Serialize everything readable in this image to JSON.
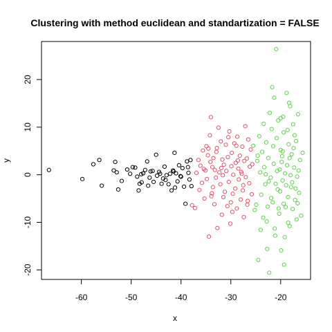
{
  "chart_data": {
    "type": "scatter",
    "title": "Clustering with method euclidean and standartization = FALSE",
    "xlabel": "x",
    "ylabel": "y",
    "xlim": [
      -68,
      -14
    ],
    "ylim": [
      -22,
      28
    ],
    "x_ticks": [
      -60,
      -50,
      -40,
      -30,
      -20
    ],
    "y_ticks": [
      -20,
      -10,
      0,
      10,
      20
    ],
    "x_tick_labels": [
      "-60",
      "-50",
      "-40",
      "-30",
      "-20"
    ],
    "y_tick_labels": [
      "-20",
      "-10",
      "0",
      "10",
      "20"
    ],
    "grid": false,
    "legend": "none",
    "marker": "open-circle",
    "series": [
      {
        "color": "#000000",
        "points": [
          [
            -66.5,
            1.0
          ],
          [
            -59.8,
            -0.9
          ],
          [
            -57.6,
            2.2
          ],
          [
            -56.4,
            3.1
          ],
          [
            -55.9,
            -2.3
          ],
          [
            -53.2,
            2.7
          ],
          [
            -52.9,
            0.5
          ],
          [
            -52.6,
            -3.1
          ],
          [
            -51.9,
            -1.3
          ],
          [
            -50.8,
            1.1
          ],
          [
            -50.2,
            0.2
          ],
          [
            -49.7,
            1.6
          ],
          [
            -49.2,
            1.5
          ],
          [
            -48.8,
            -0.4
          ],
          [
            -48.5,
            -3.3
          ],
          [
            -48.3,
            -1.9
          ],
          [
            -47.9,
            -1.6
          ],
          [
            -47.6,
            0.3
          ],
          [
            -47.2,
            1.0
          ],
          [
            -46.8,
            2.8
          ],
          [
            -46.6,
            -2.3
          ],
          [
            -46.1,
            0.7
          ],
          [
            -45.7,
            0.8
          ],
          [
            -45.5,
            -1.5
          ],
          [
            -45.0,
            4.2
          ],
          [
            -44.8,
            -0.2
          ],
          [
            -44.4,
            0.6
          ],
          [
            -43.9,
            -1.9
          ],
          [
            -43.6,
            -0.8
          ],
          [
            -43.3,
            1.7
          ],
          [
            -42.9,
            -0.1
          ],
          [
            -42.5,
            -2.0
          ],
          [
            -42.2,
            0.2
          ],
          [
            -41.9,
            -3.3
          ],
          [
            -41.6,
            0.9
          ],
          [
            -41.3,
            4.6
          ],
          [
            -41.0,
            0.3
          ],
          [
            -40.7,
            -1.4
          ],
          [
            -40.4,
            2.0
          ],
          [
            -40.1,
            -0.3
          ],
          [
            -39.7,
            1.4
          ],
          [
            -39.4,
            -2.5
          ],
          [
            -39.1,
            -6.1
          ],
          [
            -38.8,
            2.8
          ],
          [
            -38.5,
            0.4
          ],
          [
            -38.3,
            -1.0
          ],
          [
            -38.1,
            3.1
          ],
          [
            -37.9,
            -2.4
          ],
          [
            -41.5,
            0.7
          ],
          [
            -43.1,
            -1.1
          ],
          [
            -44.2,
            0.2
          ],
          [
            -46.3,
            -0.6
          ],
          [
            -48.0,
            0.1
          ],
          [
            -53.5,
            0.9
          ],
          [
            -38.6,
            1.6
          ],
          [
            -41.2,
            -2.7
          ],
          [
            -40.0,
            -0.4
          ]
        ]
      },
      {
        "color": "#DF536B",
        "points": [
          [
            -37.8,
            -6.4
          ],
          [
            -37.2,
            -7.0
          ],
          [
            -36.9,
            0.4
          ],
          [
            -36.5,
            3.1
          ],
          [
            -36.3,
            -3.2
          ],
          [
            -35.8,
            -1.7
          ],
          [
            -35.6,
            5.1
          ],
          [
            -35.4,
            1.2
          ],
          [
            -35.1,
            0.9
          ],
          [
            -34.9,
            6.0
          ],
          [
            -34.8,
            -0.9
          ],
          [
            -34.6,
            4.1
          ],
          [
            -34.5,
            5.5
          ],
          [
            -34.4,
            -13.0
          ],
          [
            -34.2,
            8.3
          ],
          [
            -34.0,
            12.1
          ],
          [
            -33.9,
            -4.5
          ],
          [
            -33.7,
            1.6
          ],
          [
            -33.6,
            -2.6
          ],
          [
            -33.5,
            3.5
          ],
          [
            -33.3,
            -6.2
          ],
          [
            -33.2,
            1.0
          ],
          [
            -33.0,
            -0.6
          ],
          [
            -32.9,
            4.8
          ],
          [
            -32.7,
            -11.2
          ],
          [
            -32.5,
            9.9
          ],
          [
            -32.3,
            0.5
          ],
          [
            -32.1,
            -2.0
          ],
          [
            -32.0,
            7.0
          ],
          [
            -31.8,
            -8.4
          ],
          [
            -31.7,
            3.2
          ],
          [
            -31.6,
            -0.1
          ],
          [
            -31.4,
            2.1
          ],
          [
            -31.2,
            -3.6
          ],
          [
            -31.0,
            6.3
          ],
          [
            -30.9,
            0.8
          ],
          [
            -30.7,
            -6.6
          ],
          [
            -30.6,
            3.7
          ],
          [
            -30.4,
            -1.5
          ],
          [
            -30.3,
            9.1
          ],
          [
            -30.1,
            -10.3
          ],
          [
            -29.9,
            1.8
          ],
          [
            -29.8,
            4.6
          ],
          [
            -29.6,
            -4.0
          ],
          [
            -29.5,
            0.0
          ],
          [
            -29.3,
            6.6
          ],
          [
            -29.1,
            -2.9
          ],
          [
            -29.0,
            2.5
          ],
          [
            -28.8,
            -7.1
          ],
          [
            -28.7,
            8.0
          ],
          [
            -28.5,
            1.3
          ],
          [
            -28.4,
            -1.0
          ],
          [
            -28.2,
            4.0
          ],
          [
            -28.0,
            -5.2
          ],
          [
            -27.9,
            0.6
          ],
          [
            -27.7,
            5.9
          ],
          [
            -27.6,
            -3.3
          ],
          [
            -27.4,
            -8.9
          ],
          [
            -27.3,
            2.9
          ],
          [
            -27.1,
            10.2
          ],
          [
            -27.0,
            -0.5
          ],
          [
            -26.8,
            3.4
          ],
          [
            -26.7,
            -6.3
          ],
          [
            -26.5,
            7.4
          ],
          [
            -26.3,
            -1.8
          ],
          [
            -26.2,
            1.7
          ],
          [
            -26.0,
            5.3
          ],
          [
            -25.8,
            -4.1
          ],
          [
            -25.7,
            2.2
          ],
          [
            -36.1,
            1.9
          ],
          [
            -35.3,
            -5.0
          ],
          [
            -33.8,
            -3.9
          ],
          [
            -32.8,
            5.6
          ],
          [
            -31.5,
            -4.7
          ],
          [
            -30.5,
            7.9
          ],
          [
            -29.7,
            -7.8
          ],
          [
            -28.6,
            3.0
          ],
          [
            -27.5,
            -2.2
          ],
          [
            -26.6,
            -5.5
          ],
          [
            -34.1,
            2.7
          ],
          [
            -31.9,
            1.4
          ],
          [
            -30.0,
            -5.8
          ],
          [
            -28.9,
            6.1
          ],
          [
            -27.8,
            0.2
          ]
        ]
      },
      {
        "color": "#61D04F",
        "points": [
          [
            -25.5,
            6.1
          ],
          [
            -25.2,
            -7.4
          ],
          [
            -24.9,
            -6.3
          ],
          [
            -24.7,
            2.9
          ],
          [
            -24.5,
            -17.9
          ],
          [
            -24.3,
            8.1
          ],
          [
            -24.1,
            0.5
          ],
          [
            -23.9,
            -4.2
          ],
          [
            -23.7,
            4.8
          ],
          [
            -23.5,
            -9.0
          ],
          [
            -23.3,
            1.6
          ],
          [
            -23.1,
            -2.0
          ],
          [
            -22.9,
            6.8
          ],
          [
            -22.7,
            -15.6
          ],
          [
            -22.5,
            3.5
          ],
          [
            -22.3,
            -20.6
          ],
          [
            -22.2,
            13.0
          ],
          [
            -22.0,
            -0.6
          ],
          [
            -21.8,
            9.6
          ],
          [
            -21.6,
            -5.8
          ],
          [
            -21.4,
            2.3
          ],
          [
            -21.3,
            16.2
          ],
          [
            -21.1,
            -12.8
          ],
          [
            -20.9,
            26.4
          ],
          [
            -20.8,
            7.7
          ],
          [
            -20.6,
            -3.1
          ],
          [
            -20.5,
            11.4
          ],
          [
            -20.3,
            -8.2
          ],
          [
            -20.2,
            1.1
          ],
          [
            -20.0,
            5.2
          ],
          [
            -19.9,
            -15.9
          ],
          [
            -19.7,
            3.9
          ],
          [
            -19.6,
            -1.2
          ],
          [
            -19.4,
            8.9
          ],
          [
            -19.3,
            -18.9
          ],
          [
            -19.1,
            0.3
          ],
          [
            -19.0,
            -6.8
          ],
          [
            -18.8,
            17.2
          ],
          [
            -18.7,
            2.0
          ],
          [
            -18.5,
            -4.7
          ],
          [
            -18.4,
            6.4
          ],
          [
            -18.2,
            -10.8
          ],
          [
            -18.1,
            14.4
          ],
          [
            -17.9,
            -2.6
          ],
          [
            -17.8,
            4.3
          ],
          [
            -17.6,
            -7.2
          ],
          [
            -17.5,
            10.6
          ],
          [
            -17.3,
            1.5
          ],
          [
            -17.1,
            -5.3
          ],
          [
            -16.9,
            7.1
          ],
          [
            -16.7,
            -0.4
          ],
          [
            -16.5,
            12.7
          ],
          [
            -16.3,
            -3.8
          ],
          [
            -16.1,
            3.1
          ],
          [
            -15.9,
            -8.6
          ],
          [
            -15.6,
            4.6
          ],
          [
            -24.0,
            -11.6
          ],
          [
            -22.8,
            -9.8
          ],
          [
            -21.9,
            -4.9
          ],
          [
            -21.2,
            -11.3
          ],
          [
            -20.7,
            0.8
          ],
          [
            -20.1,
            -3.5
          ],
          [
            -19.5,
            12.2
          ],
          [
            -18.9,
            -2.2
          ],
          [
            -18.3,
            15.1
          ],
          [
            -17.7,
            -1.6
          ],
          [
            -17.2,
            8.3
          ],
          [
            -16.6,
            -6.0
          ],
          [
            -23.4,
            10.7
          ],
          [
            -22.4,
            -1.4
          ],
          [
            -21.5,
            6.0
          ],
          [
            -20.4,
            -7.1
          ],
          [
            -19.8,
            2.7
          ],
          [
            -19.2,
            -13.1
          ],
          [
            -18.6,
            9.4
          ],
          [
            -18.0,
            -0.1
          ],
          [
            -17.4,
            5.6
          ],
          [
            -16.8,
            -9.4
          ],
          [
            -24.6,
            4.0
          ],
          [
            -23.0,
            0.1
          ],
          [
            -21.7,
            18.4
          ],
          [
            -20.0,
            11.9
          ],
          [
            -19.4,
            -6.1
          ],
          [
            -18.2,
            3.5
          ],
          [
            -17.0,
            -2.9
          ],
          [
            -16.4,
            0.9
          ],
          [
            -22.6,
            -6.7
          ],
          [
            -21.0,
            -1.9
          ],
          [
            -19.6,
            4.9
          ],
          [
            -18.5,
            -10.1
          ]
        ]
      }
    ]
  }
}
